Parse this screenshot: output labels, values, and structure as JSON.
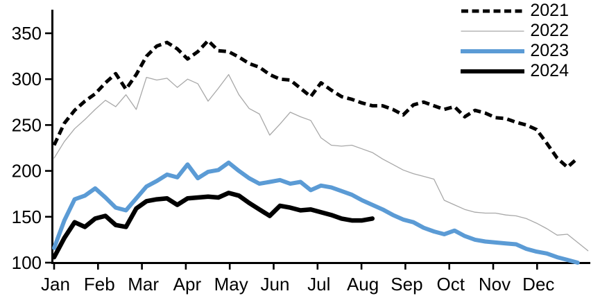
{
  "chart_data": {
    "type": "line",
    "title": "",
    "xlabel": "",
    "ylabel": "",
    "x_axis": {
      "tick_labels": [
        "Jan",
        "Feb",
        "Mar",
        "Apr",
        "May",
        "Jun",
        "Jul",
        "Aug",
        "Sep",
        "Oct",
        "Nov",
        "Dec"
      ],
      "unit": "weekly points across one year"
    },
    "y_axis": {
      "ticks": [
        350,
        300,
        250,
        200,
        150,
        100
      ],
      "range": [
        100,
        350
      ],
      "grid": false
    },
    "legend": {
      "position": "top-right"
    },
    "series": [
      {
        "name": "2022",
        "color": "#a8a8a8",
        "stroke_width": 1.3,
        "dash": null,
        "values": [
          214,
          232,
          246,
          256,
          267,
          277,
          270,
          283,
          267,
          302,
          299,
          301,
          291,
          300,
          295,
          276,
          290,
          305,
          283,
          268,
          262,
          239,
          251,
          264,
          259,
          255,
          236,
          228,
          227,
          228,
          224,
          220,
          213,
          207,
          201,
          197,
          194,
          191,
          168,
          163,
          158,
          155,
          154,
          154,
          152,
          151,
          148,
          143,
          137,
          130,
          131,
          122,
          113
        ]
      },
      {
        "name": "2021",
        "color": "#000000",
        "stroke_width": 5,
        "dash": "11 6",
        "values": [
          228,
          252,
          266,
          276,
          284,
          296,
          306,
          289,
          305,
          325,
          336,
          340,
          333,
          322,
          330,
          342,
          331,
          330,
          324,
          317,
          313,
          305,
          300,
          299,
          290,
          281,
          296,
          288,
          281,
          278,
          274,
          271,
          271,
          267,
          261,
          272,
          275,
          271,
          267,
          270,
          259,
          266,
          263,
          258,
          257,
          253,
          250,
          245,
          230,
          214,
          204,
          214
        ]
      },
      {
        "name": "2023",
        "color": "#5b9bd5",
        "stroke_width": 6,
        "dash": null,
        "values": [
          116,
          146,
          169,
          173,
          181,
          171,
          160,
          157,
          170,
          183,
          189,
          196,
          193,
          207,
          192,
          199,
          201,
          209,
          200,
          192,
          186,
          188,
          190,
          186,
          188,
          179,
          184,
          182,
          178,
          174,
          168,
          163,
          158,
          152,
          147,
          144,
          138,
          134,
          131,
          135,
          129,
          125,
          123,
          122,
          121,
          120,
          115,
          112,
          110,
          106,
          103,
          100
        ]
      },
      {
        "name": "2024",
        "color": "#000000",
        "stroke_width": 6.5,
        "dash": null,
        "values": [
          106,
          127,
          144,
          139,
          148,
          151,
          141,
          139,
          159,
          167,
          169,
          170,
          163,
          170,
          171,
          172,
          171,
          176,
          173,
          165,
          158,
          151,
          162,
          160,
          157,
          158,
          155,
          152,
          148,
          146,
          146,
          148
        ]
      }
    ],
    "legend_order": [
      "2021",
      "2022",
      "2023",
      "2024"
    ]
  },
  "colors": {
    "background": "#ffffff",
    "axis": "#000000",
    "text": "#000000",
    "series_2021": "#000000",
    "series_2022": "#a8a8a8",
    "series_2023": "#5b9bd5",
    "series_2024": "#000000"
  }
}
